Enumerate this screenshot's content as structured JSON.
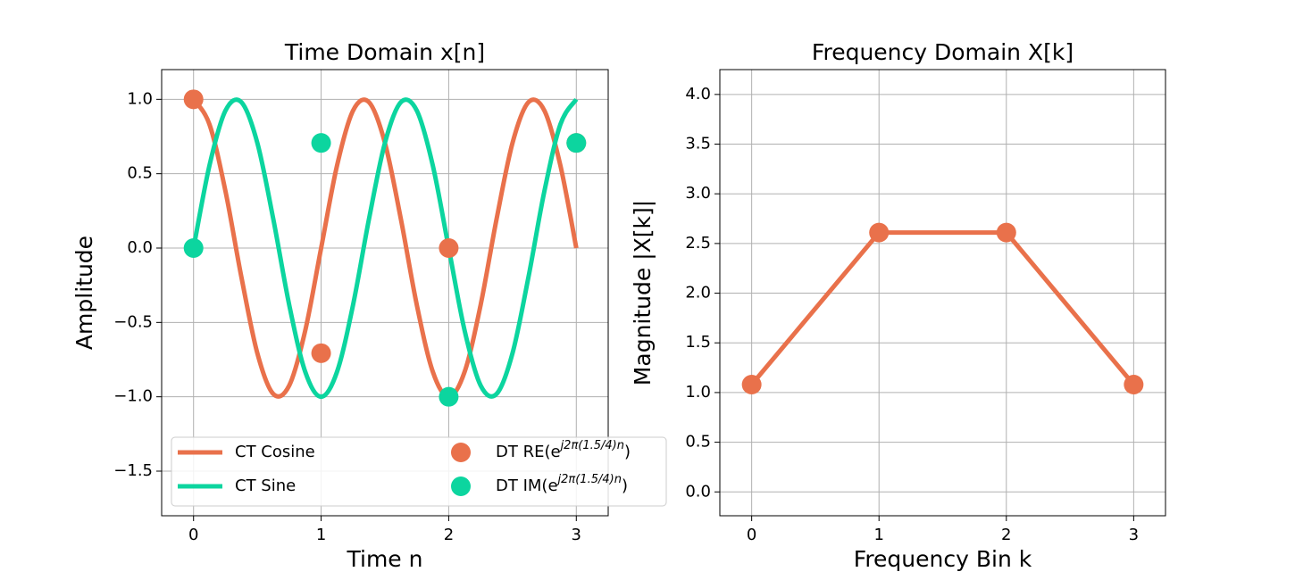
{
  "chart_data": [
    {
      "type": "line",
      "title": "Time Domain x[n]",
      "x_label": "Time n",
      "y_label": "Amplitude",
      "xlim": [
        -0.25,
        3.25
      ],
      "ylim": [
        -1.8,
        1.2
      ],
      "grid": true,
      "legend": "lower left",
      "legend_columns": 2,
      "xticks": [
        0,
        1,
        2,
        3
      ],
      "yticks": [
        {
          "value": -1.5,
          "label": "−1.5"
        },
        {
          "value": -1.0,
          "label": "−1.0"
        },
        {
          "value": -0.5,
          "label": "−0.5"
        },
        {
          "value": 0.0,
          "label": "0.0"
        },
        {
          "value": 0.5,
          "label": "0.5"
        },
        {
          "value": 1.0,
          "label": "1.0"
        }
      ],
      "series": [
        {
          "name": "CT Cosine",
          "color": "#e9714b",
          "mode": "line",
          "smooth": true,
          "x": [
            0,
            0.125,
            0.25,
            0.375,
            0.5,
            0.625,
            0.75,
            0.875,
            1,
            1.125,
            1.25,
            1.375,
            1.5,
            1.625,
            1.75,
            1.875,
            2,
            2.125,
            2.25,
            2.375,
            2.5,
            2.625,
            2.75,
            2.875,
            3
          ],
          "values": [
            1,
            0.831,
            0.383,
            -0.195,
            -0.707,
            -0.981,
            -0.924,
            -0.556,
            0,
            0.556,
            0.924,
            0.981,
            0.707,
            0.195,
            -0.383,
            -0.831,
            -1,
            -0.831,
            -0.383,
            0.195,
            0.707,
            0.981,
            0.924,
            0.556,
            0
          ]
        },
        {
          "name": "CT Sine",
          "color": "#0cd59f",
          "mode": "line",
          "smooth": true,
          "x": [
            0,
            0.125,
            0.25,
            0.375,
            0.5,
            0.625,
            0.75,
            0.875,
            1,
            1.125,
            1.25,
            1.375,
            1.5,
            1.625,
            1.75,
            1.875,
            2,
            2.125,
            2.25,
            2.375,
            2.5,
            2.625,
            2.75,
            2.875,
            3
          ],
          "values": [
            0,
            0.556,
            0.924,
            0.981,
            0.707,
            0.195,
            -0.383,
            -0.831,
            -1,
            -0.831,
            -0.383,
            0.195,
            0.707,
            0.981,
            0.924,
            0.556,
            0,
            -0.556,
            -0.924,
            -0.981,
            -0.707,
            -0.195,
            0.383,
            0.831,
            1
          ]
        },
        {
          "name": "DT RE(e^{j2π(1.5/4)n})",
          "color": "#e9714b",
          "mode": "markers",
          "x": [
            0,
            1,
            2,
            3
          ],
          "values": [
            1,
            -0.707,
            0,
            0.707
          ]
        },
        {
          "name": "DT IM(e^{j2π(1.5/4)n})",
          "color": "#0cd59f",
          "mode": "markers",
          "x": [
            0,
            1,
            2,
            3
          ],
          "values": [
            0,
            0.707,
            -1,
            0.707
          ]
        }
      ]
    },
    {
      "type": "line",
      "title": "Frequency Domain X[k]",
      "x_label": "Frequency Bin k",
      "y_label": "Magnitude |X[k]|",
      "xlim": [
        -0.25,
        3.25
      ],
      "ylim": [
        -0.24,
        4.25
      ],
      "grid": true,
      "xticks": [
        0,
        1,
        2,
        3
      ],
      "yticks": [
        {
          "value": 0,
          "label": "0.0"
        },
        {
          "value": 0.5,
          "label": "0.5"
        },
        {
          "value": 1,
          "label": "1.0"
        },
        {
          "value": 1.5,
          "label": "1.5"
        },
        {
          "value": 2,
          "label": "2.0"
        },
        {
          "value": 2.5,
          "label": "2.5"
        },
        {
          "value": 3,
          "label": "3.0"
        },
        {
          "value": 3.5,
          "label": "3.5"
        },
        {
          "value": 4,
          "label": "4.0"
        }
      ],
      "series": [
        {
          "color": "#e9714b",
          "mode": "lines+markers",
          "x": [
            0,
            1,
            2,
            3
          ],
          "values": [
            1.08,
            2.61,
            2.61,
            1.08
          ]
        }
      ]
    }
  ]
}
